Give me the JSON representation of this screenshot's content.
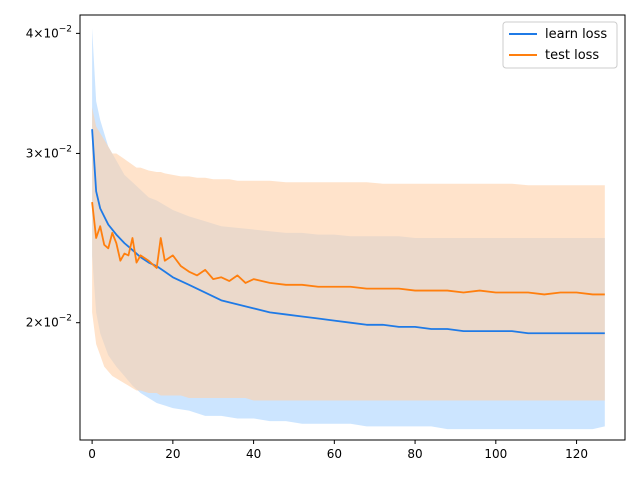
{
  "chart_data": {
    "type": "line",
    "title": "",
    "xlabel": "",
    "ylabel": "",
    "xlim": [
      -3,
      132
    ],
    "ylim": [
      0.0151,
      0.0418
    ],
    "yscale": "log",
    "grid": false,
    "legend_position": "top-right",
    "x_ticks": [
      0,
      20,
      40,
      60,
      80,
      100,
      120
    ],
    "x_tick_labels": [
      "0",
      "20",
      "40",
      "60",
      "80",
      "100",
      "120"
    ],
    "y_ticks": [
      0.02,
      0.03,
      0.04
    ],
    "y_tick_mantissas": [
      "2",
      "3",
      "4"
    ],
    "y_tick_base": "×10",
    "y_tick_exponent": "−2",
    "series": [
      {
        "name": "learn loss",
        "color": "#1f7ae6",
        "band_color": "#aad4ff",
        "x": [
          0,
          1,
          2,
          4,
          6,
          8,
          10,
          12,
          14,
          16,
          18,
          20,
          24,
          28,
          32,
          36,
          40,
          44,
          48,
          52,
          56,
          60,
          64,
          68,
          72,
          76,
          80,
          84,
          88,
          92,
          96,
          100,
          104,
          108,
          112,
          116,
          120,
          124,
          127
        ],
        "values": [
          0.0318,
          0.0274,
          0.0263,
          0.0253,
          0.0247,
          0.0242,
          0.0238,
          0.0234,
          0.0231,
          0.0229,
          0.0226,
          0.0223,
          0.0219,
          0.0215,
          0.0211,
          0.0209,
          0.0207,
          0.0205,
          0.0204,
          0.0203,
          0.0202,
          0.0201,
          0.02,
          0.0199,
          0.0199,
          0.0198,
          0.0198,
          0.0197,
          0.0197,
          0.0196,
          0.0196,
          0.0196,
          0.0196,
          0.0195,
          0.0195,
          0.0195,
          0.0195,
          0.0195,
          0.0195
        ],
        "upper": [
          0.0405,
          0.034,
          0.0325,
          0.0305,
          0.0295,
          0.0285,
          0.028,
          0.0275,
          0.027,
          0.0268,
          0.0265,
          0.0262,
          0.0258,
          0.0255,
          0.0252,
          0.0251,
          0.025,
          0.0249,
          0.0248,
          0.0248,
          0.0247,
          0.0247,
          0.0246,
          0.0246,
          0.0246,
          0.0246,
          0.0245,
          0.0245,
          0.0245,
          0.0245,
          0.0245,
          0.0245,
          0.0245,
          0.0245,
          0.0245,
          0.0245,
          0.0245,
          0.0245,
          0.0245
        ],
        "lower": [
          0.0235,
          0.0205,
          0.0195,
          0.0185,
          0.018,
          0.0176,
          0.0172,
          0.0169,
          0.0167,
          0.0165,
          0.0164,
          0.0163,
          0.0162,
          0.016,
          0.016,
          0.0159,
          0.0159,
          0.0158,
          0.0158,
          0.0157,
          0.0157,
          0.0157,
          0.0157,
          0.0156,
          0.0156,
          0.0156,
          0.0156,
          0.0156,
          0.0155,
          0.0155,
          0.0155,
          0.0155,
          0.0155,
          0.0155,
          0.0155,
          0.0155,
          0.0155,
          0.0155,
          0.0156
        ]
      },
      {
        "name": "test loss",
        "color": "#ff7f0e",
        "band_color": "#ffd0a8",
        "x": [
          0,
          1,
          2,
          3,
          4,
          5,
          6,
          7,
          8,
          9,
          10,
          11,
          12,
          14,
          16,
          17,
          18,
          20,
          22,
          24,
          26,
          28,
          30,
          32,
          34,
          36,
          38,
          40,
          44,
          48,
          52,
          56,
          60,
          64,
          68,
          72,
          76,
          80,
          84,
          88,
          92,
          96,
          100,
          104,
          108,
          112,
          116,
          120,
          124,
          127
        ],
        "values": [
          0.0267,
          0.0245,
          0.0252,
          0.0241,
          0.0239,
          0.0248,
          0.0242,
          0.0232,
          0.0236,
          0.0235,
          0.0245,
          0.0231,
          0.0235,
          0.0232,
          0.0228,
          0.0245,
          0.0232,
          0.0235,
          0.0229,
          0.0226,
          0.0224,
          0.0227,
          0.0222,
          0.0223,
          0.0221,
          0.0224,
          0.022,
          0.0222,
          0.022,
          0.0219,
          0.0219,
          0.0218,
          0.0218,
          0.0218,
          0.0217,
          0.0217,
          0.0217,
          0.0216,
          0.0216,
          0.0216,
          0.0215,
          0.0216,
          0.0215,
          0.0215,
          0.0215,
          0.0214,
          0.0215,
          0.0215,
          0.0214,
          0.0214
        ],
        "upper": [
          0.0335,
          0.032,
          0.0315,
          0.031,
          0.0305,
          0.03,
          0.03,
          0.0298,
          0.0296,
          0.0294,
          0.0292,
          0.029,
          0.029,
          0.0288,
          0.0287,
          0.0287,
          0.0286,
          0.0285,
          0.0284,
          0.0284,
          0.0283,
          0.0283,
          0.0282,
          0.0282,
          0.0282,
          0.0281,
          0.0281,
          0.0281,
          0.0281,
          0.028,
          0.028,
          0.028,
          0.028,
          0.028,
          0.028,
          0.0279,
          0.0279,
          0.0279,
          0.0279,
          0.0279,
          0.0279,
          0.0279,
          0.0279,
          0.0279,
          0.0278,
          0.0278,
          0.0278,
          0.0278,
          0.0278,
          0.0278
        ],
        "lower": [
          0.0205,
          0.019,
          0.0185,
          0.018,
          0.0178,
          0.0176,
          0.0175,
          0.0174,
          0.0173,
          0.0172,
          0.0171,
          0.017,
          0.017,
          0.0169,
          0.0169,
          0.0168,
          0.0168,
          0.0168,
          0.0168,
          0.0167,
          0.0167,
          0.0167,
          0.0167,
          0.0167,
          0.0167,
          0.0167,
          0.0167,
          0.0166,
          0.0166,
          0.0166,
          0.0166,
          0.0166,
          0.0166,
          0.0166,
          0.0166,
          0.0166,
          0.0166,
          0.0166,
          0.0166,
          0.0166,
          0.0166,
          0.0166,
          0.0166,
          0.0166,
          0.0166,
          0.0166,
          0.0166,
          0.0166,
          0.0166,
          0.0166
        ]
      }
    ]
  }
}
